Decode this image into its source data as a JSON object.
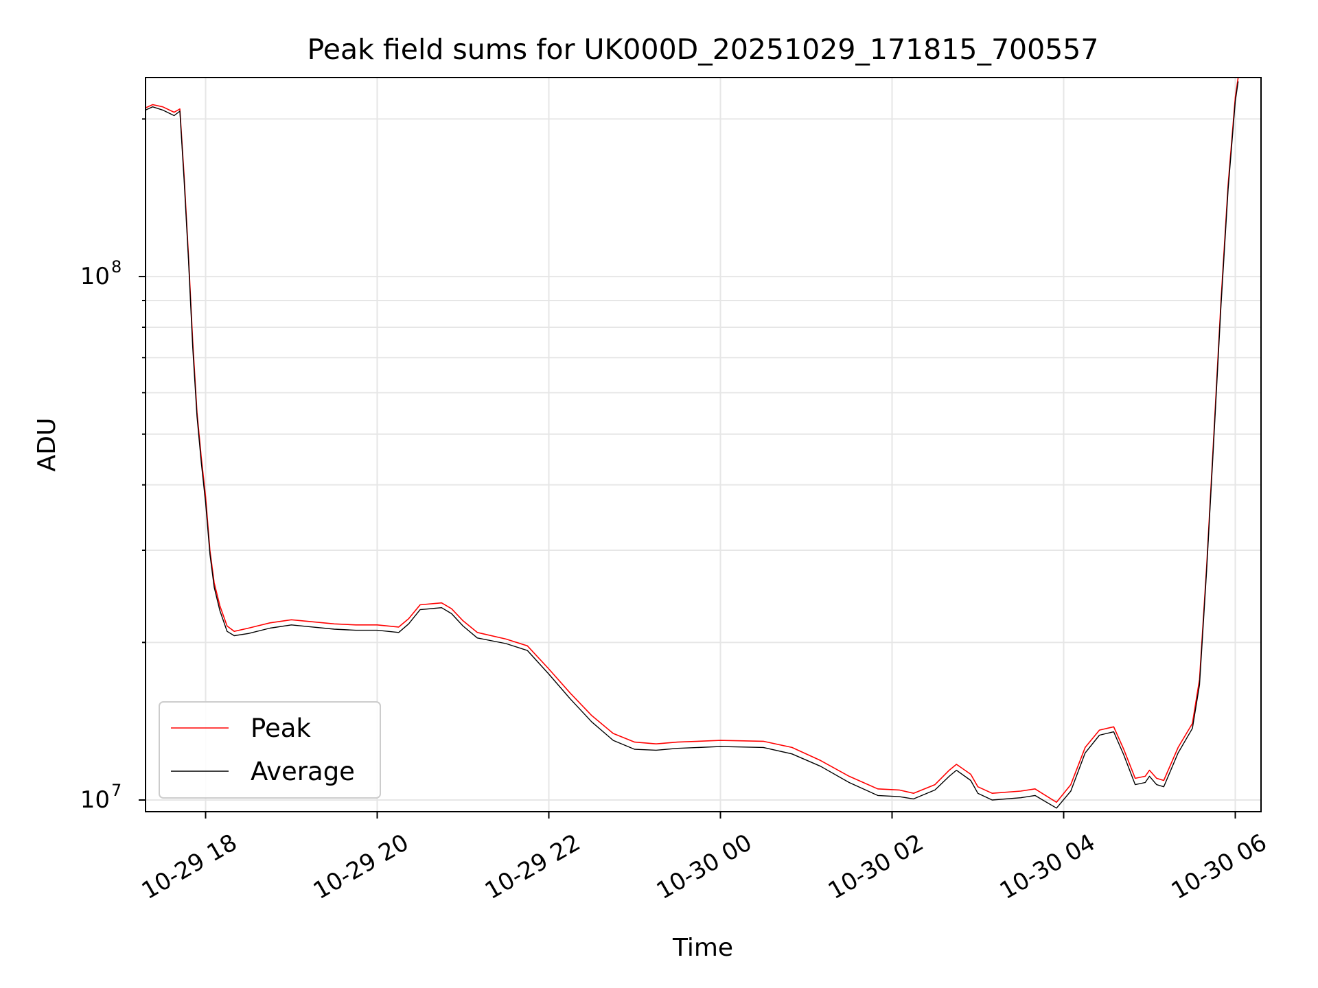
{
  "chart_data": {
    "type": "line",
    "title": "Peak field sums for UK000D_20251029_171815_700557",
    "xlabel": "Time",
    "ylabel": "ADU",
    "yscale": "log",
    "xlim": [
      "2025-10-29 17:18",
      "2025-10-30 06:18"
    ],
    "ylim": [
      9500000,
      240000000
    ],
    "grid": true,
    "legend_position": "lower-left",
    "x_ticks": [
      {
        "t": "2025-10-29 18:00",
        "label": "10-29 18"
      },
      {
        "t": "2025-10-29 20:00",
        "label": "10-29 20"
      },
      {
        "t": "2025-10-29 22:00",
        "label": "10-29 22"
      },
      {
        "t": "2025-10-30 00:00",
        "label": "10-30 00"
      },
      {
        "t": "2025-10-30 02:00",
        "label": "10-30 02"
      },
      {
        "t": "2025-10-30 04:00",
        "label": "10-30 04"
      },
      {
        "t": "2025-10-30 06:00",
        "label": "10-30 06"
      }
    ],
    "y_ticks": [
      {
        "value": 10000000,
        "base": "10",
        "exp": "7"
      },
      {
        "value": 100000000,
        "base": "10",
        "exp": "8"
      }
    ],
    "series": [
      {
        "name": "Peak",
        "color": "#ff0000",
        "points": [
          [
            "2025-10-29 17:18",
            210000000
          ],
          [
            "2025-10-29 17:23",
            213000000
          ],
          [
            "2025-10-29 17:30",
            211000000
          ],
          [
            "2025-10-29 17:38",
            206000000
          ],
          [
            "2025-10-29 17:42",
            209000000
          ],
          [
            "2025-10-29 17:45",
            155000000
          ],
          [
            "2025-10-29 17:48",
            110000000
          ],
          [
            "2025-10-29 17:51",
            75000000
          ],
          [
            "2025-10-29 17:54",
            55000000
          ],
          [
            "2025-10-29 17:57",
            45000000
          ],
          [
            "2025-10-29 18:00",
            38000000
          ],
          [
            "2025-10-29 18:03",
            30000000
          ],
          [
            "2025-10-29 18:06",
            26000000
          ],
          [
            "2025-10-29 18:10",
            23500000
          ],
          [
            "2025-10-29 18:15",
            21500000
          ],
          [
            "2025-10-29 18:20",
            21000000
          ],
          [
            "2025-10-29 18:30",
            21300000
          ],
          [
            "2025-10-29 18:45",
            21800000
          ],
          [
            "2025-10-29 19:00",
            22100000
          ],
          [
            "2025-10-29 19:15",
            21900000
          ],
          [
            "2025-10-29 19:30",
            21700000
          ],
          [
            "2025-10-29 19:45",
            21600000
          ],
          [
            "2025-10-29 20:00",
            21600000
          ],
          [
            "2025-10-29 20:15",
            21400000
          ],
          [
            "2025-10-29 20:22",
            22200000
          ],
          [
            "2025-10-29 20:30",
            23600000
          ],
          [
            "2025-10-29 20:45",
            23800000
          ],
          [
            "2025-10-29 20:52",
            23200000
          ],
          [
            "2025-10-29 21:00",
            22000000
          ],
          [
            "2025-10-29 21:10",
            20900000
          ],
          [
            "2025-10-29 21:30",
            20300000
          ],
          [
            "2025-10-29 21:45",
            19700000
          ],
          [
            "2025-10-29 22:00",
            17800000
          ],
          [
            "2025-10-29 22:15",
            16000000
          ],
          [
            "2025-10-29 22:30",
            14500000
          ],
          [
            "2025-10-29 22:45",
            13400000
          ],
          [
            "2025-10-29 23:00",
            12900000
          ],
          [
            "2025-10-29 23:15",
            12800000
          ],
          [
            "2025-10-29 23:30",
            12900000
          ],
          [
            "2025-10-30 00:00",
            13000000
          ],
          [
            "2025-10-30 00:30",
            12950000
          ],
          [
            "2025-10-30 00:50",
            12600000
          ],
          [
            "2025-10-30 01:10",
            11900000
          ],
          [
            "2025-10-30 01:30",
            11100000
          ],
          [
            "2025-10-30 01:50",
            10500000
          ],
          [
            "2025-10-30 02:05",
            10450000
          ],
          [
            "2025-10-30 02:15",
            10300000
          ],
          [
            "2025-10-30 02:30",
            10700000
          ],
          [
            "2025-10-30 02:40",
            11400000
          ],
          [
            "2025-10-30 02:45",
            11700000
          ],
          [
            "2025-10-30 02:55",
            11200000
          ],
          [
            "2025-10-30 03:00",
            10600000
          ],
          [
            "2025-10-30 03:10",
            10300000
          ],
          [
            "2025-10-30 03:30",
            10400000
          ],
          [
            "2025-10-30 03:40",
            10500000
          ],
          [
            "2025-10-30 03:55",
            9900000
          ],
          [
            "2025-10-30 04:05",
            10700000
          ],
          [
            "2025-10-30 04:15",
            12600000
          ],
          [
            "2025-10-30 04:25",
            13600000
          ],
          [
            "2025-10-30 04:35",
            13800000
          ],
          [
            "2025-10-30 04:42",
            12500000
          ],
          [
            "2025-10-30 04:50",
            11000000
          ],
          [
            "2025-10-30 04:57",
            11100000
          ],
          [
            "2025-10-30 05:00",
            11400000
          ],
          [
            "2025-10-30 05:05",
            11000000
          ],
          [
            "2025-10-30 05:10",
            10900000
          ],
          [
            "2025-10-30 05:20",
            12600000
          ],
          [
            "2025-10-30 05:30",
            14000000
          ],
          [
            "2025-10-30 05:35",
            17000000
          ],
          [
            "2025-10-30 05:40",
            28000000
          ],
          [
            "2025-10-30 05:45",
            50000000
          ],
          [
            "2025-10-30 05:50",
            90000000
          ],
          [
            "2025-10-30 05:55",
            150000000
          ],
          [
            "2025-10-30 06:00",
            220000000
          ],
          [
            "2025-10-30 06:02",
            240000000
          ]
        ]
      },
      {
        "name": "Average",
        "color": "#000000",
        "points": [
          [
            "2025-10-29 17:18",
            208000000
          ],
          [
            "2025-10-29 17:23",
            211000000
          ],
          [
            "2025-10-29 17:30",
            208000000
          ],
          [
            "2025-10-29 17:38",
            203000000
          ],
          [
            "2025-10-29 17:42",
            207000000
          ],
          [
            "2025-10-29 17:45",
            152000000
          ],
          [
            "2025-10-29 17:48",
            108000000
          ],
          [
            "2025-10-29 17:51",
            73000000
          ],
          [
            "2025-10-29 17:54",
            54000000
          ],
          [
            "2025-10-29 17:57",
            44000000
          ],
          [
            "2025-10-29 18:00",
            37000000
          ],
          [
            "2025-10-29 18:03",
            29500000
          ],
          [
            "2025-10-29 18:06",
            25500000
          ],
          [
            "2025-10-29 18:10",
            23000000
          ],
          [
            "2025-10-29 18:15",
            21000000
          ],
          [
            "2025-10-29 18:20",
            20600000
          ],
          [
            "2025-10-29 18:30",
            20800000
          ],
          [
            "2025-10-29 18:45",
            21300000
          ],
          [
            "2025-10-29 19:00",
            21600000
          ],
          [
            "2025-10-29 19:15",
            21400000
          ],
          [
            "2025-10-29 19:30",
            21200000
          ],
          [
            "2025-10-29 19:45",
            21100000
          ],
          [
            "2025-10-29 20:00",
            21100000
          ],
          [
            "2025-10-29 20:15",
            20900000
          ],
          [
            "2025-10-29 20:22",
            21700000
          ],
          [
            "2025-10-29 20:30",
            23100000
          ],
          [
            "2025-10-29 20:45",
            23300000
          ],
          [
            "2025-10-29 20:52",
            22700000
          ],
          [
            "2025-10-29 21:00",
            21500000
          ],
          [
            "2025-10-29 21:10",
            20400000
          ],
          [
            "2025-10-29 21:30",
            19900000
          ],
          [
            "2025-10-29 21:45",
            19300000
          ],
          [
            "2025-10-29 22:00",
            17400000
          ],
          [
            "2025-10-29 22:15",
            15600000
          ],
          [
            "2025-10-29 22:30",
            14100000
          ],
          [
            "2025-10-29 22:45",
            13000000
          ],
          [
            "2025-10-29 23:00",
            12500000
          ],
          [
            "2025-10-29 23:15",
            12450000
          ],
          [
            "2025-10-29 23:30",
            12550000
          ],
          [
            "2025-10-30 00:00",
            12650000
          ],
          [
            "2025-10-30 00:30",
            12600000
          ],
          [
            "2025-10-30 00:50",
            12250000
          ],
          [
            "2025-10-30 01:10",
            11600000
          ],
          [
            "2025-10-30 01:30",
            10800000
          ],
          [
            "2025-10-30 01:50",
            10200000
          ],
          [
            "2025-10-30 02:05",
            10150000
          ],
          [
            "2025-10-30 02:15",
            10050000
          ],
          [
            "2025-10-30 02:30",
            10450000
          ],
          [
            "2025-10-30 02:40",
            11100000
          ],
          [
            "2025-10-30 02:45",
            11400000
          ],
          [
            "2025-10-30 02:55",
            10900000
          ],
          [
            "2025-10-30 03:00",
            10300000
          ],
          [
            "2025-10-30 03:10",
            10000000
          ],
          [
            "2025-10-30 03:30",
            10100000
          ],
          [
            "2025-10-30 03:40",
            10200000
          ],
          [
            "2025-10-30 03:55",
            9650000
          ],
          [
            "2025-10-30 04:05",
            10400000
          ],
          [
            "2025-10-30 04:15",
            12300000
          ],
          [
            "2025-10-30 04:25",
            13300000
          ],
          [
            "2025-10-30 04:35",
            13500000
          ],
          [
            "2025-10-30 04:42",
            12200000
          ],
          [
            "2025-10-30 04:50",
            10700000
          ],
          [
            "2025-10-30 04:57",
            10800000
          ],
          [
            "2025-10-30 05:00",
            11100000
          ],
          [
            "2025-10-30 05:05",
            10700000
          ],
          [
            "2025-10-30 05:10",
            10600000
          ],
          [
            "2025-10-30 05:20",
            12300000
          ],
          [
            "2025-10-30 05:30",
            13700000
          ],
          [
            "2025-10-30 05:35",
            16600000
          ],
          [
            "2025-10-30 05:40",
            27500000
          ],
          [
            "2025-10-30 05:45",
            49000000
          ],
          [
            "2025-10-30 05:50",
            88000000
          ],
          [
            "2025-10-30 05:55",
            147000000
          ],
          [
            "2025-10-30 06:00",
            216000000
          ],
          [
            "2025-10-30 06:02",
            236000000
          ]
        ]
      }
    ]
  }
}
